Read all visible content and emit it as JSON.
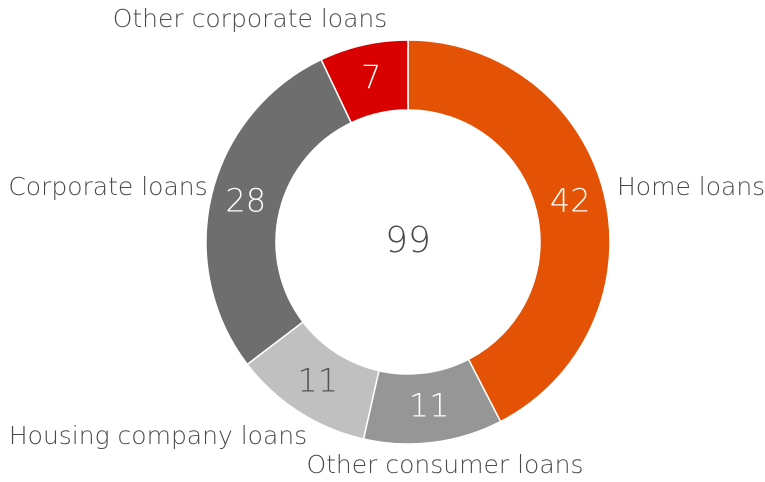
{
  "chart_data": {
    "type": "donut",
    "categories": [
      "Home loans",
      "Other consumer loans",
      "Housing company loans",
      "Corporate loans",
      "Other corporate loans"
    ],
    "values": [
      42,
      11,
      11,
      28,
      7
    ],
    "colors": [
      "#e35205",
      "#969696",
      "#c0c0c0",
      "#6e6e6e",
      "#d90000"
    ],
    "total": 99
  }
}
